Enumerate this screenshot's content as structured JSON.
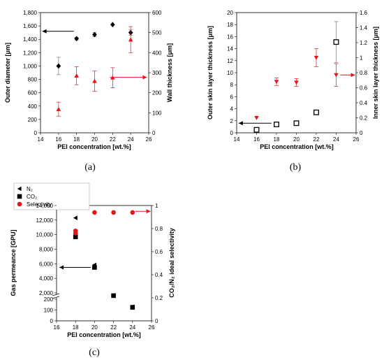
{
  "chart_data": [
    {
      "panel_label": "(a)",
      "type": "scatter",
      "xlabel": "PEI concentration [wt.%]",
      "xlim": [
        14,
        26
      ],
      "xticks": [
        14,
        16,
        18,
        20,
        22,
        24,
        26
      ],
      "ylabel": "Outer diameter [μm]",
      "ylim": [
        0,
        1800
      ],
      "yticks": [
        0,
        200,
        400,
        600,
        800,
        1000,
        1200,
        1400,
        1600,
        1800
      ],
      "ytick_labels": [
        "0",
        "200",
        "400",
        "600",
        "800",
        "1,000",
        "1,200",
        "1,400",
        "1,600",
        "1,800"
      ],
      "y2label": "Wall thickness [μm]",
      "y2lim": [
        0,
        600
      ],
      "y2ticks": [
        0,
        100,
        200,
        300,
        400,
        500,
        600
      ],
      "series": [
        {
          "axis": "left",
          "marker": "diamond",
          "color": "#000000",
          "x": [
            16,
            18,
            20,
            22,
            24
          ],
          "y": [
            1000,
            1410,
            1470,
            1620,
            1500
          ],
          "err": [
            130,
            20,
            30,
            0,
            40
          ]
        },
        {
          "axis": "right",
          "marker": "triangle-up",
          "color": "#e8141c",
          "x": [
            16,
            18,
            20,
            22,
            24
          ],
          "y": [
            118,
            285,
            258,
            275,
            465
          ],
          "err": [
            35,
            45,
            50,
            50,
            65
          ]
        }
      ],
      "arrows": [
        {
          "direction": "left",
          "axis": "left",
          "x_from": 17.7,
          "x_to": 14.2,
          "y": 1520,
          "color": "#000000"
        },
        {
          "direction": "right",
          "axis": "right",
          "x_from": 21.7,
          "x_to": 25.8,
          "y": 277,
          "color": "#e8141c"
        }
      ]
    },
    {
      "panel_label": "(b)",
      "type": "scatter",
      "xlabel": "PEI concentration [wt.%]",
      "xlim": [
        14,
        26
      ],
      "xticks": [
        14,
        16,
        18,
        20,
        22,
        24,
        26
      ],
      "ylabel": "Outer skin layer thickness [μm]",
      "ylim": [
        0,
        20
      ],
      "yticks": [
        0,
        2,
        4,
        6,
        8,
        10,
        12,
        14,
        16,
        18,
        20
      ],
      "y2label": "Inner skin layer thickness [μm]",
      "y2lim": [
        0,
        1.6
      ],
      "y2ticks": [
        0,
        0.2,
        0.4,
        0.6,
        0.8,
        1,
        1.2,
        1.4,
        1.6
      ],
      "y2tick_labels": [
        "0",
        "0.2",
        "0.4",
        "0.6",
        "0.8",
        "1",
        "1.2",
        "1.4",
        "1.6"
      ],
      "series": [
        {
          "axis": "left",
          "marker": "square-open",
          "color": "#000000",
          "x": [
            16,
            18,
            20,
            22,
            24
          ],
          "y": [
            0.5,
            1.4,
            1.6,
            3.4,
            15.1
          ],
          "err": [
            0,
            0,
            0,
            0.3,
            3.4
          ]
        },
        {
          "axis": "right",
          "marker": "triangle-down",
          "color": "#e8141c",
          "x": [
            16,
            18,
            20,
            22,
            24
          ],
          "y": [
            0.2,
            0.68,
            0.67,
            1.0,
            0.77
          ],
          "err": [
            0,
            0.05,
            0.05,
            0.12,
            0.15
          ]
        }
      ],
      "arrows": [
        {
          "direction": "left",
          "axis": "left",
          "x_from": 17.5,
          "x_to": 14.2,
          "y": 1.6,
          "color": "#000000"
        },
        {
          "direction": "right",
          "axis": "right",
          "x_from": 24.4,
          "x_to": 25.9,
          "y": 0.77,
          "color": "#e8141c"
        }
      ]
    },
    {
      "panel_label": "(c)",
      "type": "scatter",
      "xlabel": "PEI concentration [wt.%]",
      "xlim": [
        16,
        26
      ],
      "xticks": [
        16,
        18,
        20,
        22,
        24,
        26
      ],
      "ylabel": "Gas permeance [GPU]",
      "yticks_display": [
        "0",
        "100",
        "200",
        "2,000",
        "4,000",
        "6,000",
        "8,000",
        "10,000",
        "12,000",
        "14,000"
      ],
      "y_axis_break": true,
      "y2label": "CO₂/N₂ ideal selectivity",
      "y2lim": [
        0,
        1
      ],
      "y2ticks": [
        0,
        0.2,
        0.4,
        0.6,
        0.8,
        1
      ],
      "legend": {
        "position": "top-left",
        "entries": [
          "N₂",
          "CO₂",
          "Selectivity"
        ]
      },
      "series": [
        {
          "name": "N₂",
          "axis": "left",
          "marker": "triangle-left",
          "color": "#000000",
          "x": [
            18,
            20,
            22,
            24
          ],
          "y": [
            12300,
            5850,
            1650,
            130
          ]
        },
        {
          "name": "CO₂",
          "axis": "left",
          "marker": "square",
          "color": "#000000",
          "x": [
            18,
            20,
            22,
            24
          ],
          "y": [
            9700,
            5500,
            1620,
            125
          ]
        },
        {
          "name": "Selectivity",
          "axis": "right",
          "marker": "circle",
          "color": "#e8141c",
          "x": [
            18,
            18,
            20,
            22,
            24
          ],
          "y": [
            0.78,
            0.76,
            0.94,
            0.94,
            0.94
          ]
        }
      ],
      "arrows": [
        {
          "direction": "left",
          "axis": "left",
          "x_from": 19.6,
          "x_to": 16.3,
          "y": 5500,
          "color": "#000000"
        },
        {
          "direction": "right",
          "axis": "right",
          "x_from": 24.3,
          "x_to": 25.9,
          "y": 0.95,
          "color": "#e8141c"
        }
      ]
    }
  ]
}
